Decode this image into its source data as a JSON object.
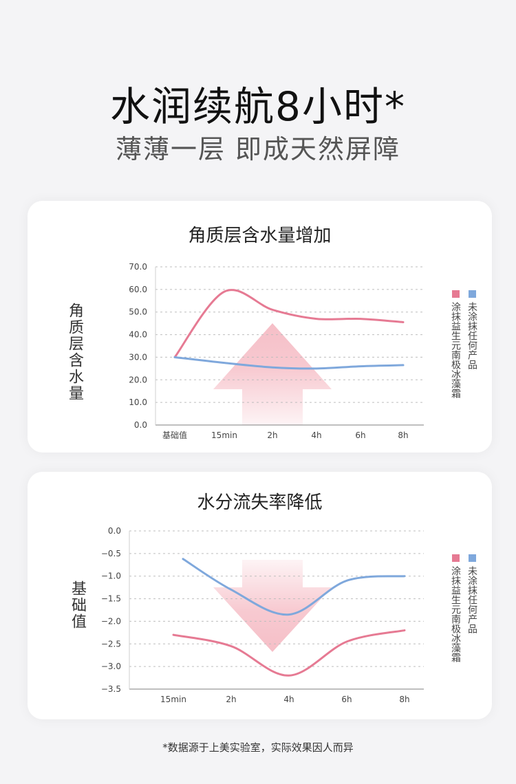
{
  "header": {
    "title": "水润续航8小时*",
    "subtitle": "薄薄一层 即成天然屏障"
  },
  "colors": {
    "treated": "#e67a93",
    "untreated": "#7fa8dc",
    "arrow": "#f4b3bd"
  },
  "chart_data": [
    {
      "type": "line",
      "title": "角质层含水量增加",
      "ylabel": "角质层含水量",
      "categories": [
        "基础值",
        "15min",
        "2h",
        "4h",
        "6h",
        "8h"
      ],
      "yticks": [
        "70.0",
        "60.0",
        "50.0",
        "40.0",
        "30.0",
        "20.0",
        "10.0",
        "0.0"
      ],
      "ylim": [
        0,
        70
      ],
      "grid": true,
      "legend_position": "right",
      "series": [
        {
          "name": "涂抹益生元南极冰藻霜",
          "color": "#e67a93",
          "values": [
            30,
            59,
            51,
            47,
            47,
            45.5
          ]
        },
        {
          "name": "未涂抹任何产品",
          "color": "#7fa8dc",
          "values": [
            30,
            27.5,
            25.5,
            25,
            26,
            26.5
          ]
        }
      ],
      "annotation": "up-arrow"
    },
    {
      "type": "line",
      "title": "水分流失率降低",
      "ylabel": "基础值",
      "categories": [
        "15min",
        "2h",
        "4h",
        "6h",
        "8h"
      ],
      "yticks": [
        "0.0",
        "−0.5",
        "−1.0",
        "−1.5",
        "−2.0",
        "−2.5",
        "−3.0",
        "−3.5"
      ],
      "ylim": [
        -3.5,
        0
      ],
      "grid": true,
      "legend_position": "right",
      "series": [
        {
          "name": "涂抹益生元南极冰藻霜",
          "color": "#e67a93",
          "values": [
            -2.3,
            -2.55,
            -3.2,
            -2.45,
            -2.2
          ]
        },
        {
          "name": "未涂抹任何产品",
          "color": "#7fa8dc",
          "values": [
            -0.62,
            -1.3,
            -1.85,
            -1.1,
            -1.0
          ]
        }
      ],
      "annotation": "down-arrow"
    }
  ],
  "footnote": "*数据源于上美实验室，实际效果因人而异"
}
